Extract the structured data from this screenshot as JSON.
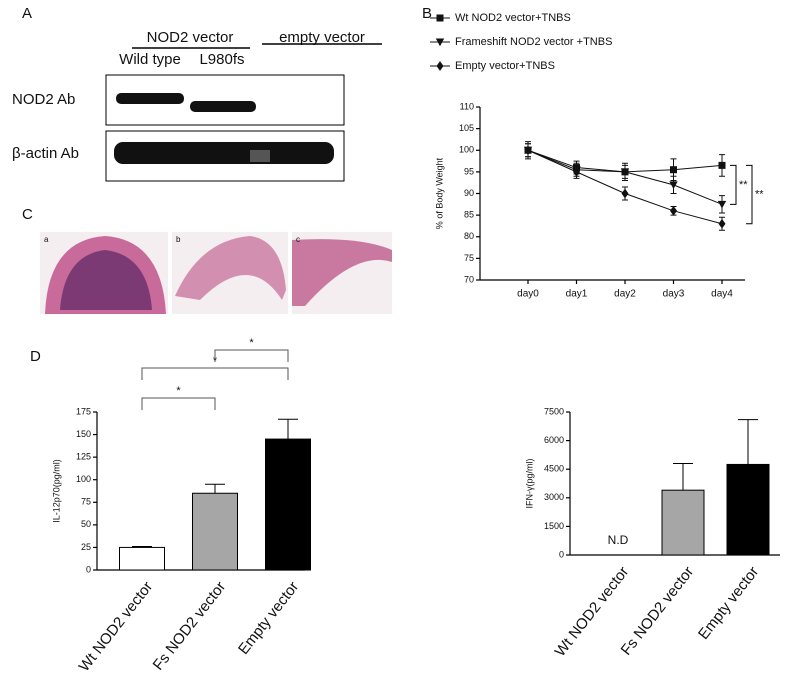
{
  "panels": [
    "A",
    "B",
    "C",
    "D"
  ],
  "blot": {
    "groups": [
      "NOD2 vector",
      "empty vector"
    ],
    "lanes": [
      "Wild type",
      "L980fs"
    ],
    "rows": [
      "NOD2 Ab",
      "β-actin Ab"
    ]
  },
  "histology": {
    "labels": [
      "a",
      "b",
      "c"
    ]
  },
  "chart_data": [
    {
      "type": "line",
      "ylabel": "% of Body Weight",
      "categories": [
        "day0",
        "day1",
        "day2",
        "day3",
        "day4"
      ],
      "ylim": [
        70,
        110
      ],
      "yticks": [
        70,
        75,
        80,
        85,
        90,
        95,
        100,
        105,
        110
      ],
      "series": [
        {
          "name": "Wt NOD2 vector+TNBS",
          "color": "#111111",
          "marker": "square",
          "values": [
            100,
            96,
            95,
            95.5,
            96.5
          ],
          "errors": [
            2,
            1.5,
            2,
            2.5,
            2.5
          ]
        },
        {
          "name": "Frameshift NOD2 vector +TNBS",
          "color": "#111111",
          "marker": "triangle-down",
          "values": [
            100,
            95.5,
            95,
            92,
            87.5
          ],
          "errors": [
            1.5,
            1.5,
            1.5,
            2,
            2
          ]
        },
        {
          "name": "Empty vector+TNBS",
          "color": "#111111",
          "marker": "diamond",
          "values": [
            100,
            95,
            90,
            86,
            83
          ],
          "errors": [
            1.5,
            1.5,
            1.5,
            1,
            1.5
          ]
        }
      ],
      "annotations": [
        "**",
        "**"
      ]
    },
    {
      "type": "bar",
      "ylabel": "IL-12p70(pg/ml)",
      "categories": [
        "Wt NOD2 vector",
        "Fs NOD2 vector",
        "Empty vector"
      ],
      "values": [
        25,
        85,
        145
      ],
      "errors": [
        1,
        10,
        22
      ],
      "colors": [
        "#ffffff",
        "#a6a6a6",
        "#000000"
      ],
      "ylim": [
        0,
        175
      ],
      "yticks": [
        0,
        25,
        50,
        75,
        100,
        125,
        150,
        175
      ],
      "annotations": [
        "*",
        "*",
        "*"
      ]
    },
    {
      "type": "bar",
      "ylabel": "IFN-γ(pg/ml)",
      "categories": [
        "Wt NOD2 vector",
        "Fs NOD2 vector",
        "Empty vector"
      ],
      "values": [
        null,
        3400,
        4750
      ],
      "errors": [
        null,
        1400,
        2350
      ],
      "colors": [
        "#ffffff",
        "#a6a6a6",
        "#000000"
      ],
      "ylim": [
        0,
        7500
      ],
      "yticks": [
        0,
        1500,
        3000,
        4500,
        6000,
        7500
      ],
      "annotations": [
        "N.D"
      ]
    }
  ]
}
